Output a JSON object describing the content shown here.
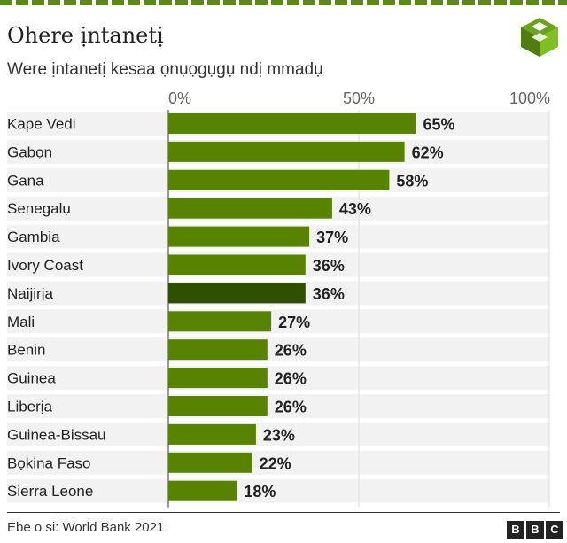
{
  "header": {
    "title": "Ohere ịntanetị",
    "subtitle": "Were ịntanetị kesaa ọnụọgụgụ ndị mmadụ"
  },
  "footer": {
    "source": "Ebe o si: World Bank 2021",
    "brand_letters": [
      "B",
      "B",
      "C"
    ]
  },
  "colors": {
    "bar": "#588300",
    "highlight_bar": "#2f4f00",
    "row_stripe": "#f2f2f2",
    "accent": "#5a8a1a"
  },
  "icons": {
    "logo": "isometric-layers-icon"
  },
  "chart_data": {
    "type": "bar",
    "orientation": "horizontal",
    "title": "Ohere ịntanetị",
    "subtitle": "Were ịntanetị kesaa ọnụọgụgụ ndị mmadụ",
    "xlabel": "",
    "ylabel": "",
    "xlim": [
      0,
      100
    ],
    "ticks": [
      0,
      50,
      100
    ],
    "tick_labels": [
      "0%",
      "50%",
      "100%"
    ],
    "grid": true,
    "legend": "none",
    "highlight": "Naijirịa",
    "categories": [
      "Kape Vedi",
      "Gabọn",
      "Gana",
      "Senegalụ",
      "Gambia",
      "Ivory Coast",
      "Naijirịa",
      "Mali",
      "Benin",
      "Guinea",
      "Liberịa",
      "Guinea-Bissau",
      "Bọkina Faso",
      "Sierra Leone"
    ],
    "values": [
      65,
      62,
      58,
      43,
      37,
      36,
      36,
      27,
      26,
      26,
      26,
      23,
      22,
      18
    ],
    "value_labels": [
      "65%",
      "62%",
      "58%",
      "43%",
      "37%",
      "36%",
      "36%",
      "27%",
      "26%",
      "26%",
      "26%",
      "23%",
      "22%",
      "18%"
    ]
  }
}
